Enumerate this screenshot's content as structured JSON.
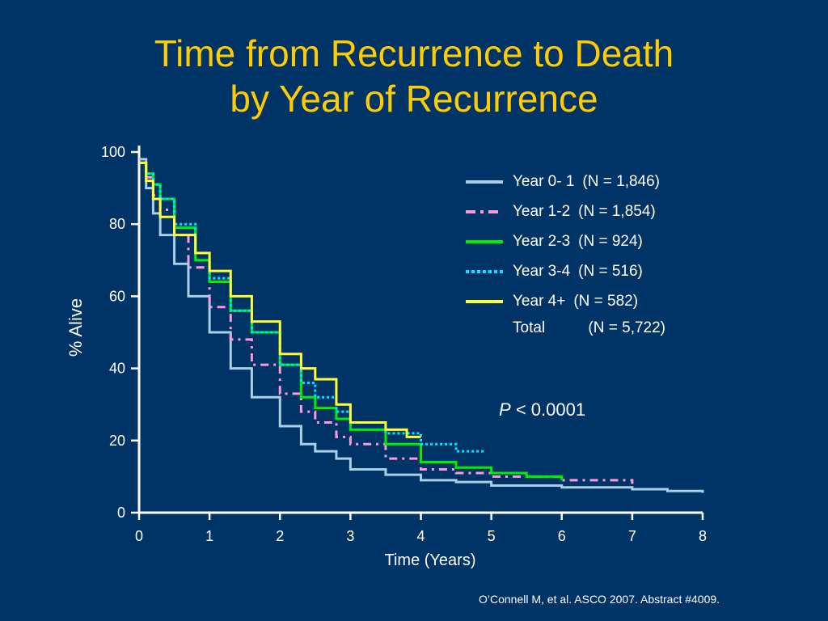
{
  "slide": {
    "title_line1": "Time from Recurrence to Death",
    "title_line2": "by Year of Recurrence",
    "citation": "O’Connell M, et al. ASCO 2007. Abstract #4009.",
    "pvalue_symbol": "P",
    "pvalue_text": "< 0.0001",
    "total_label": "Total",
    "total_count": "(N = 5,722)"
  },
  "legend": [
    {
      "label": "Year 0- 1",
      "count": "(N = 1,846)"
    },
    {
      "label": "Year 1-2",
      "count": "(N = 1,854)"
    },
    {
      "label": "Year 2-3",
      "count": "(N = 924)"
    },
    {
      "label": "Year 3-4",
      "count": "(N = 516)"
    },
    {
      "label": "Year 4+",
      "count": "(N = 582)"
    }
  ],
  "chart_data": {
    "type": "line",
    "title": "Time from Recurrence to Death by Year of Recurrence",
    "xlabel": "Time (Years)",
    "ylabel": "% Alive",
    "xlim": [
      0,
      8
    ],
    "ylim": [
      0,
      100
    ],
    "xticks": [
      0,
      1,
      2,
      3,
      4,
      5,
      6,
      7,
      8
    ],
    "yticks": [
      0,
      20,
      40,
      60,
      80,
      100
    ],
    "grid": false,
    "legend_position": "top-right",
    "colors": {
      "background": "#003366",
      "title": "#ffcc00",
      "axis": "#ffffff",
      "text": "#ffffff"
    },
    "series": [
      {
        "name": "Year 0- 1 (N = 1,846)",
        "color": "#a8d0e6",
        "dash": "solid",
        "x": [
          0,
          0.1,
          0.2,
          0.3,
          0.5,
          0.7,
          1.0,
          1.3,
          1.6,
          2.0,
          2.3,
          2.5,
          2.8,
          3.0,
          3.5,
          4.0,
          4.5,
          5.0,
          6.0,
          7.0,
          7.5,
          8.0
        ],
        "y": [
          98,
          90,
          83,
          77,
          69,
          60,
          50,
          40,
          32,
          24,
          19,
          17,
          15,
          12,
          10.5,
          9,
          8.5,
          7.5,
          7,
          6.5,
          6,
          5.5
        ]
      },
      {
        "name": "Year 1-2 (N = 1,854)",
        "color": "#ff99dd",
        "dash": "dashdot",
        "x": [
          0,
          0.1,
          0.2,
          0.3,
          0.5,
          0.7,
          1.0,
          1.3,
          1.6,
          2.0,
          2.3,
          2.5,
          2.8,
          3.0,
          3.5,
          4.0,
          4.5,
          5.0,
          6.0,
          7.0
        ],
        "y": [
          97,
          93,
          88,
          84,
          77,
          68,
          57,
          48,
          41,
          33,
          28,
          25,
          21,
          19,
          15,
          12,
          11,
          10,
          9,
          8
        ]
      },
      {
        "name": "Year 2-3 (N = 924)",
        "color": "#00ee00",
        "dash": "solid",
        "x": [
          0,
          0.1,
          0.2,
          0.3,
          0.5,
          0.8,
          1.0,
          1.3,
          1.6,
          2.0,
          2.3,
          2.5,
          2.8,
          3.0,
          3.5,
          4.0,
          4.5,
          5.0,
          5.5,
          6.0
        ],
        "y": [
          97,
          94,
          91,
          87,
          79,
          70,
          64,
          56,
          50,
          41,
          32,
          29,
          26,
          23,
          19,
          14,
          12.5,
          11,
          10,
          9
        ]
      },
      {
        "name": "Year 3-4 (N = 516)",
        "color": "#00e5ff",
        "dash": "dotted",
        "x": [
          0,
          0.1,
          0.2,
          0.3,
          0.5,
          0.8,
          1.0,
          1.3,
          1.6,
          2.0,
          2.3,
          2.5,
          2.8,
          3.0,
          3.5,
          4.0,
          4.5,
          4.9
        ],
        "y": [
          97,
          94,
          91,
          87,
          80,
          72,
          65,
          56,
          50,
          41,
          36,
          32,
          28,
          25,
          22,
          19,
          17,
          16.5
        ]
      },
      {
        "name": "Year 4+ (N = 582)",
        "color": "#ffff33",
        "dash": "solid",
        "x": [
          0,
          0.1,
          0.2,
          0.3,
          0.5,
          0.8,
          1.0,
          1.3,
          1.6,
          2.0,
          2.3,
          2.5,
          2.8,
          3.0,
          3.5,
          3.8,
          4.0
        ],
        "y": [
          97,
          92,
          87,
          82,
          77,
          72,
          67,
          60,
          53,
          44,
          40,
          37,
          30,
          25,
          23,
          21,
          21
        ]
      }
    ]
  }
}
